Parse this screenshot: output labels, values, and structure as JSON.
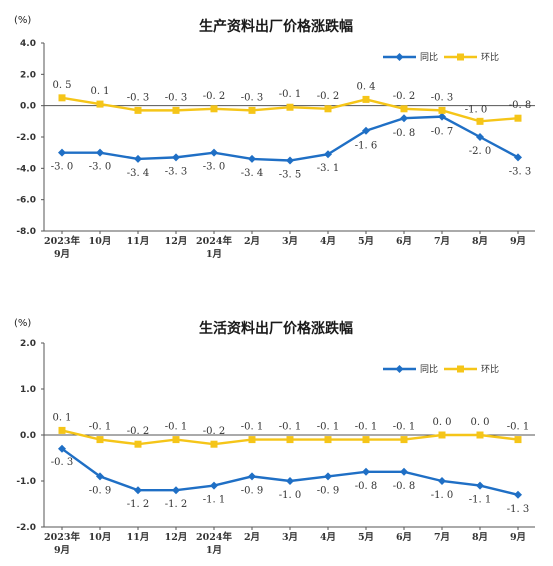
{
  "chart_data": [
    {
      "type": "line",
      "title": "生产资料出厂价格涨跌幅",
      "unit": "(%)",
      "categories": [
        [
          "2023年",
          "9月"
        ],
        [
          "10月"
        ],
        [
          "11月"
        ],
        [
          "12月"
        ],
        [
          "2024年",
          "1月"
        ],
        [
          "2月"
        ],
        [
          "3月"
        ],
        [
          "4月"
        ],
        [
          "5月"
        ],
        [
          "6月"
        ],
        [
          "7月"
        ],
        [
          "8月"
        ],
        [
          "9月"
        ]
      ],
      "ylim": [
        -8.0,
        4.0
      ],
      "yticks": [
        "4.0",
        "2.0",
        "0.0",
        "-2.0",
        "-4.0",
        "-6.0",
        "-8.0"
      ],
      "legend_position": "top-right",
      "grid": false,
      "series": [
        {
          "name": "同比",
          "color": "#1f6fc5",
          "marker": "diamond",
          "values": [
            -3.0,
            -3.0,
            -3.4,
            -3.3,
            -3.0,
            -3.4,
            -3.5,
            -3.1,
            -1.6,
            -0.8,
            -0.7,
            -2.0,
            -3.3
          ],
          "labels": [
            "-3.0",
            "-3.0",
            "-3.4",
            "-3.3",
            "-3.0",
            "-3.4",
            "-3.5",
            "-3.1",
            "-1.6",
            "-0.8",
            "-0.7",
            "-2.0",
            "-3.3"
          ]
        },
        {
          "name": "环比",
          "color": "#f5c518",
          "marker": "square",
          "values": [
            0.5,
            0.1,
            -0.3,
            -0.3,
            -0.2,
            -0.3,
            -0.1,
            -0.2,
            0.4,
            -0.2,
            -0.3,
            -1.0,
            -0.8
          ],
          "labels": [
            "0.5",
            "0.1",
            "-0.3",
            "-0.3",
            "-0.2",
            "-0.3",
            "-0.1",
            "-0.2",
            "0.4",
            "-0.2",
            "-0.3",
            "-1.0",
            "-0.8"
          ]
        }
      ]
    },
    {
      "type": "line",
      "title": "生活资料出厂价格涨跌幅",
      "unit": "(%)",
      "categories": [
        [
          "2023年",
          "9月"
        ],
        [
          "10月"
        ],
        [
          "11月"
        ],
        [
          "12月"
        ],
        [
          "2024年",
          "1月"
        ],
        [
          "2月"
        ],
        [
          "3月"
        ],
        [
          "4月"
        ],
        [
          "5月"
        ],
        [
          "6月"
        ],
        [
          "7月"
        ],
        [
          "8月"
        ],
        [
          "9月"
        ]
      ],
      "ylim": [
        -2.0,
        2.0
      ],
      "yticks": [
        "2.0",
        "1.0",
        "0.0",
        "-1.0",
        "-2.0"
      ],
      "legend_position": "top-right",
      "grid": false,
      "series": [
        {
          "name": "同比",
          "color": "#1f6fc5",
          "marker": "diamond",
          "values": [
            -0.3,
            -0.9,
            -1.2,
            -1.2,
            -1.1,
            -0.9,
            -1.0,
            -0.9,
            -0.8,
            -0.8,
            -1.0,
            -1.1,
            -1.3
          ],
          "labels": [
            "-0.3",
            "-0.9",
            "-1.2",
            "-1.2",
            "-1.1",
            "-0.9",
            "-1.0",
            "-0.9",
            "-0.8",
            "-0.8",
            "-1.0",
            "-1.1",
            "-1.3"
          ]
        },
        {
          "name": "环比",
          "color": "#f5c518",
          "marker": "square",
          "values": [
            0.1,
            -0.1,
            -0.2,
            -0.1,
            -0.2,
            -0.1,
            -0.1,
            -0.1,
            -0.1,
            -0.1,
            0.0,
            0.0,
            -0.1
          ],
          "labels": [
            "0.1",
            "-0.1",
            "-0.2",
            "-0.1",
            "-0.2",
            "-0.1",
            "-0.1",
            "-0.1",
            "-0.1",
            "-0.1",
            "0.0",
            "0.0",
            "-0.1"
          ]
        }
      ]
    }
  ]
}
